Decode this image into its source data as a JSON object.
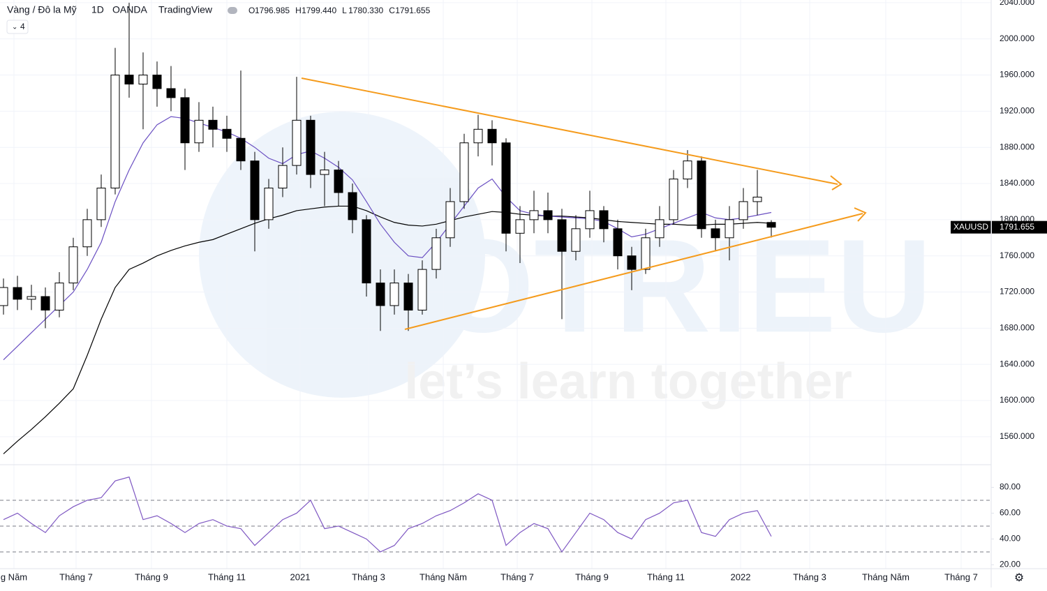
{
  "header": {
    "symbol": "Vàng / Đô la Mỹ",
    "interval": "1D",
    "source": "OANDA",
    "platform": "TradingView",
    "ohlc_labels": [
      "O",
      "H",
      "L",
      "C"
    ],
    "ohlc_values": [
      "1796.985",
      "1799.440",
      "1780.330",
      "1791.655"
    ],
    "indicator_count": "4"
  },
  "watermark": {
    "brand": "TOTRIEU",
    "slogan": "let’s learn together"
  },
  "chart_data": [
    {
      "type": "candlestick",
      "symbol": "XAUUSD",
      "up_color": "#ffffff",
      "down_color": "#000000",
      "open": [
        1705,
        1725,
        1712,
        1715,
        1700,
        1730,
        1770,
        1800,
        1835,
        1960,
        1950,
        1960,
        1945,
        1935,
        1885,
        1910,
        1900,
        1890,
        1865,
        1800,
        1835,
        1860,
        1910,
        1850,
        1855,
        1830,
        1800,
        1730,
        1705,
        1730,
        1700,
        1745,
        1780,
        1820,
        1885,
        1900,
        1885,
        1785,
        1800,
        1810,
        1800,
        1765,
        1790,
        1810,
        1790,
        1760,
        1745,
        1780,
        1800,
        1845,
        1865,
        1790,
        1780,
        1800,
        1820,
        1796.985
      ],
      "high": [
        1735,
        1738,
        1728,
        1725,
        1742,
        1780,
        1812,
        1850,
        1990,
        2040,
        1985,
        1975,
        1970,
        1945,
        1930,
        1925,
        1915,
        1965,
        1875,
        1845,
        1880,
        1958,
        1915,
        1875,
        1865,
        1840,
        1805,
        1745,
        1745,
        1740,
        1755,
        1790,
        1835,
        1895,
        1916,
        1910,
        1890,
        1815,
        1832,
        1830,
        1812,
        1805,
        1832,
        1815,
        1800,
        1770,
        1790,
        1815,
        1855,
        1877,
        1870,
        1800,
        1815,
        1835,
        1855,
        1799.44
      ],
      "low": [
        1695,
        1700,
        1700,
        1680,
        1692,
        1722,
        1760,
        1792,
        1828,
        1935,
        1900,
        1925,
        1920,
        1855,
        1875,
        1880,
        1875,
        1855,
        1765,
        1790,
        1825,
        1850,
        1835,
        1815,
        1815,
        1785,
        1715,
        1677,
        1695,
        1677,
        1695,
        1735,
        1770,
        1812,
        1870,
        1860,
        1765,
        1752,
        1785,
        1785,
        1690,
        1755,
        1780,
        1775,
        1745,
        1722,
        1740,
        1770,
        1795,
        1835,
        1780,
        1765,
        1755,
        1790,
        1805,
        1780.33
      ],
      "close": [
        1725,
        1712,
        1715,
        1700,
        1730,
        1770,
        1800,
        1835,
        1960,
        1950,
        1960,
        1945,
        1935,
        1885,
        1910,
        1900,
        1890,
        1865,
        1800,
        1835,
        1860,
        1910,
        1850,
        1855,
        1830,
        1800,
        1730,
        1705,
        1730,
        1700,
        1745,
        1780,
        1820,
        1885,
        1900,
        1885,
        1785,
        1800,
        1810,
        1800,
        1765,
        1790,
        1810,
        1790,
        1760,
        1745,
        1780,
        1800,
        1845,
        1865,
        1790,
        1780,
        1800,
        1820,
        1825,
        1791.655
      ],
      "overlays": [
        {
          "color": "#000000",
          "values": [
            1541,
            1555,
            1568,
            1582,
            1597,
            1613,
            1650,
            1690,
            1725,
            1745,
            1752,
            1760,
            1766,
            1771,
            1775,
            1778,
            1784,
            1790,
            1796,
            1801,
            1805,
            1810,
            1812,
            1814,
            1815,
            1815,
            1810,
            1803,
            1797,
            1794,
            1793,
            1795,
            1799,
            1803,
            1806,
            1809,
            1808,
            1806,
            1805,
            1804,
            1804,
            1803,
            1802,
            1800,
            1798,
            1797,
            1796,
            1795,
            1795,
            1794,
            1794,
            1795,
            1795,
            1796,
            1797,
            1796
          ]
        },
        {
          "color": "#6a4fc2",
          "values": [
            1645,
            1660,
            1675,
            1690,
            1705,
            1720,
            1745,
            1775,
            1820,
            1855,
            1885,
            1905,
            1914,
            1912,
            1907,
            1902,
            1897,
            1890,
            1880,
            1868,
            1862,
            1872,
            1876,
            1868,
            1858,
            1844,
            1820,
            1795,
            1775,
            1760,
            1758,
            1775,
            1795,
            1815,
            1835,
            1845,
            1825,
            1810,
            1806,
            1804,
            1803,
            1802,
            1801,
            1798,
            1790,
            1781,
            1784,
            1790,
            1796,
            1802,
            1808,
            1802,
            1800,
            1802,
            1805,
            1808
          ]
        }
      ],
      "xlim": [
        -0.25,
        70.75
      ],
      "xticks": [
        {
          "value": 0.75,
          "label": "g Năm"
        },
        {
          "value": 5.2,
          "label": "Tháng 7"
        },
        {
          "value": 10.6,
          "label": "Tháng 9"
        },
        {
          "value": 16,
          "label": "Tháng 11"
        },
        {
          "value": 21.25,
          "label": "2021"
        },
        {
          "value": 26.15,
          "label": "Tháng 3"
        },
        {
          "value": 31.5,
          "label": "Tháng Năm"
        },
        {
          "value": 36.8,
          "label": "Tháng 7"
        },
        {
          "value": 42.15,
          "label": "Tháng 9"
        },
        {
          "value": 47.45,
          "label": "Tháng 11"
        },
        {
          "value": 52.8,
          "label": "2022"
        },
        {
          "value": 57.75,
          "label": "Tháng 3"
        },
        {
          "value": 63.2,
          "label": "Tháng Năm"
        },
        {
          "value": 68.6,
          "label": "Tháng 7"
        }
      ],
      "ylim": [
        1529,
        2043
      ],
      "yticks": [
        {
          "value": 1560,
          "label": "1560.000"
        },
        {
          "value": 1600,
          "label": "1600.000"
        },
        {
          "value": 1640,
          "label": "1640.000"
        },
        {
          "value": 1680,
          "label": "1680.000"
        },
        {
          "value": 1720,
          "label": "1720.000"
        },
        {
          "value": 1760,
          "label": "1760.000"
        },
        {
          "value": 1800,
          "label": "1800.000"
        },
        {
          "value": 1840,
          "label": "1840.000"
        },
        {
          "value": 1880,
          "label": "1880.000"
        },
        {
          "value": 1920,
          "label": "1920.000"
        },
        {
          "value": 1960,
          "label": "1960.000"
        },
        {
          "value": 2000,
          "label": "2000.000"
        },
        {
          "value": 2040,
          "label": "2040.000"
        }
      ]
    },
    {
      "type": "line",
      "series": [
        {
          "color": "#7e57c2",
          "values": [
            55,
            60,
            52,
            45,
            58,
            65,
            70,
            72,
            85,
            88,
            55,
            58,
            52,
            45,
            52,
            55,
            50,
            48,
            35,
            45,
            55,
            60,
            70,
            48,
            50,
            45,
            40,
            30,
            35,
            48,
            52,
            58,
            62,
            68,
            75,
            70,
            35,
            45,
            52,
            48,
            30,
            45,
            60,
            55,
            45,
            40,
            55,
            60,
            68,
            70,
            45,
            42,
            55,
            60,
            62,
            42
          ]
        }
      ],
      "ylim": [
        17,
        97
      ],
      "yticks": [
        {
          "value": 20,
          "label": "20.00"
        },
        {
          "value": 40,
          "label": "40.00"
        },
        {
          "value": 60,
          "label": "60.00"
        },
        {
          "value": 80,
          "label": "80.00"
        }
      ],
      "levels": [
        30,
        50,
        70
      ]
    }
  ]
}
